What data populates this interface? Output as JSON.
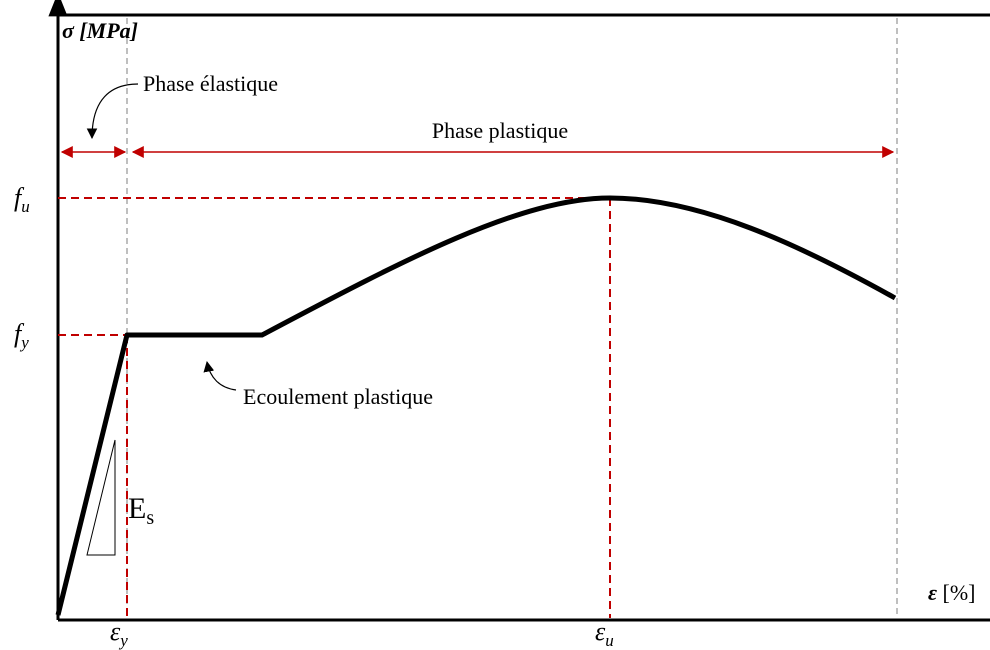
{
  "y_axis": {
    "symbol": "σ",
    "unit": "[MPa]"
  },
  "x_axis": {
    "symbol": "ε",
    "unit": "[%]"
  },
  "levels": {
    "fu": {
      "base": "f",
      "sub": "u"
    },
    "fy": {
      "base": "f",
      "sub": "y"
    },
    "ey": {
      "base": "ε",
      "sub": "y"
    },
    "eu": {
      "base": "ε",
      "sub": "u"
    }
  },
  "annotations": {
    "elastic": "Phase élastique",
    "plastic": "Phase plastique",
    "yielding": "Ecoulement plastique",
    "modulus": {
      "base": "E",
      "sub": "s"
    }
  }
}
